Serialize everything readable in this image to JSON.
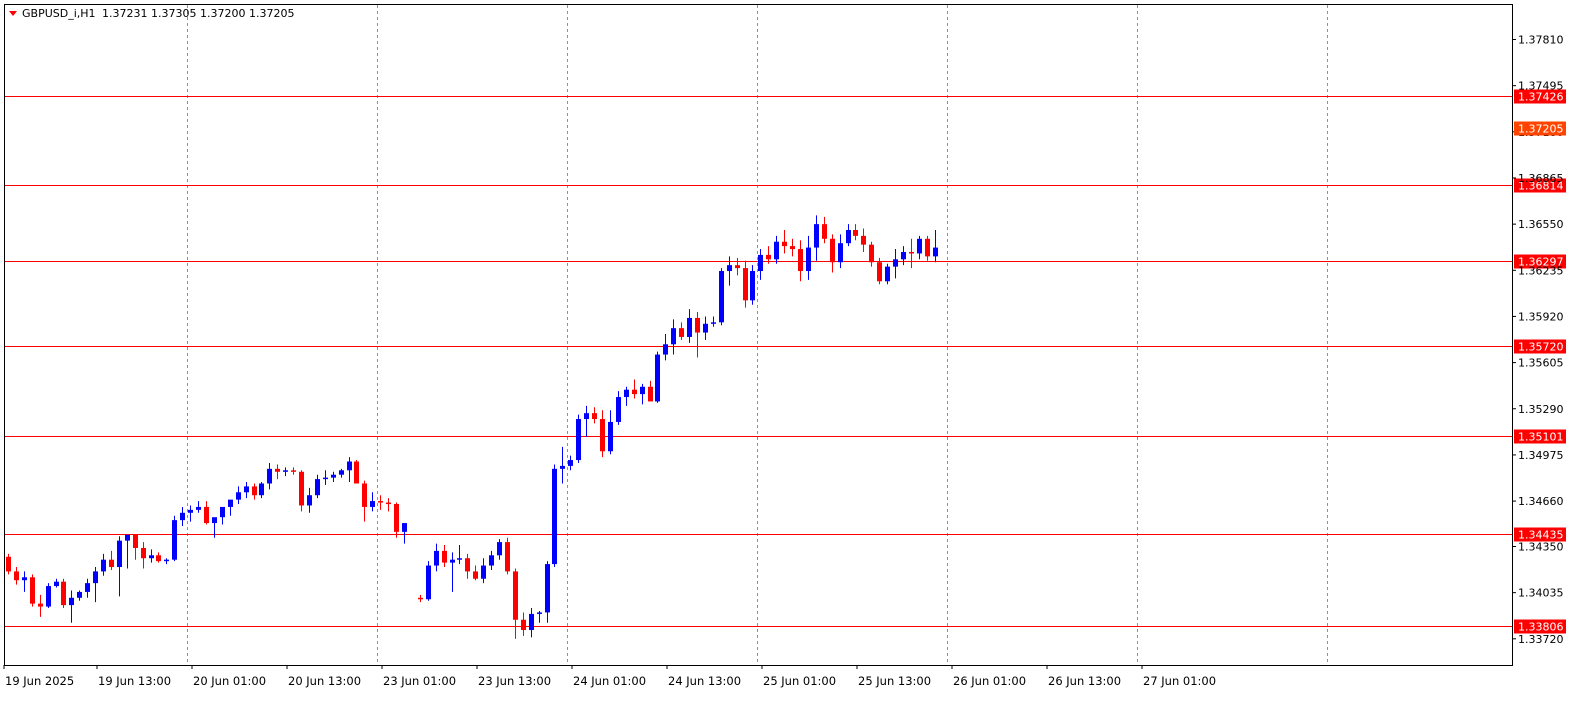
{
  "header": {
    "symbol": "GBPUSD_i,H1",
    "ohlc": "1.37231 1.37305 1.37200 1.37205"
  },
  "colors": {
    "bull": "#0000ff",
    "bear": "#ff0000",
    "doji": "#00ff00",
    "level_line": "#ff0000",
    "grid": "#ff6a3d",
    "axis_text": "#000000",
    "current_price_bg": "#ff4400",
    "level_label_bg": "#ff0000"
  },
  "chart_data": {
    "type": "candlestick",
    "timeframe": "H1",
    "symbol": "GBPUSD_i",
    "ylim": [
      1.3363,
      1.3795
    ],
    "grid": "vertical dotted at each day",
    "y_ticks": [
      "1.37810",
      "1.37495",
      "1.37180",
      "1.36865",
      "1.36550",
      "1.36235",
      "1.35920",
      "1.35605",
      "1.35290",
      "1.34975",
      "1.34660",
      "1.34350",
      "1.34035",
      "1.33720"
    ],
    "x_labels": [
      "19 Jun 2025",
      "19 Jun 13:00",
      "20 Jun 01:00",
      "20 Jun 13:00",
      "23 Jun 01:00",
      "23 Jun 13:00",
      "24 Jun 01:00",
      "24 Jun 13:00",
      "25 Jun 01:00",
      "25 Jun 13:00",
      "26 Jun 01:00",
      "26 Jun 13:00",
      "27 Jun 01:00"
    ],
    "levels": [
      "1.37426",
      "1.36814",
      "1.36297",
      "1.35720",
      "1.35101",
      "1.34435",
      "1.33806"
    ],
    "current_price": "1.37205",
    "candles": [
      [
        1.3428,
        1.343,
        1.3416,
        1.3418
      ],
      [
        1.3418,
        1.3421,
        1.3409,
        1.3412
      ],
      [
        1.3412,
        1.3418,
        1.3404,
        1.3414
      ],
      [
        1.3414,
        1.3416,
        1.3394,
        1.3396
      ],
      [
        1.3396,
        1.3402,
        1.3387,
        1.3394
      ],
      [
        1.3394,
        1.341,
        1.3393,
        1.3408
      ],
      [
        1.3408,
        1.3413,
        1.3407,
        1.3411
      ],
      [
        1.3411,
        1.3413,
        1.3393,
        1.3395
      ],
      [
        1.3395,
        1.3405,
        1.3383,
        1.34
      ],
      [
        1.34,
        1.3405,
        1.3398,
        1.3404
      ],
      [
        1.3404,
        1.3413,
        1.34,
        1.341
      ],
      [
        1.341,
        1.3421,
        1.3397,
        1.3418
      ],
      [
        1.3418,
        1.343,
        1.3415,
        1.3426
      ],
      [
        1.3426,
        1.3432,
        1.3419,
        1.3421
      ],
      [
        1.3421,
        1.3442,
        1.3401,
        1.3439
      ],
      [
        1.3439,
        1.3443,
        1.342,
        1.3443
      ],
      [
        1.3443,
        1.3443,
        1.3426,
        1.3434
      ],
      [
        1.3434,
        1.3438,
        1.342,
        1.3427
      ],
      [
        1.3427,
        1.3433,
        1.3424,
        1.3429
      ],
      [
        1.3429,
        1.3431,
        1.3424,
        1.3425
      ],
      [
        1.3425,
        1.3427,
        1.3423,
        1.3426
      ],
      [
        1.3426,
        1.3456,
        1.3425,
        1.3453
      ],
      [
        1.3453,
        1.3462,
        1.3449,
        1.3458
      ],
      [
        1.3458,
        1.3463,
        1.3452,
        1.346
      ],
      [
        1.346,
        1.3466,
        1.3458,
        1.3462
      ],
      [
        1.3462,
        1.3466,
        1.345,
        1.3451
      ],
      [
        1.3451,
        1.3453,
        1.3441,
        1.3455
      ],
      [
        1.3455,
        1.3461,
        1.345,
        1.3462
      ],
      [
        1.3462,
        1.3464,
        1.3456,
        1.3467
      ],
      [
        1.3467,
        1.3476,
        1.3464,
        1.3472
      ],
      [
        1.3472,
        1.3479,
        1.3468,
        1.3476
      ],
      [
        1.3476,
        1.3478,
        1.3467,
        1.347
      ],
      [
        1.347,
        1.3479,
        1.3468,
        1.3478
      ],
      [
        1.3478,
        1.3492,
        1.3474,
        1.3488
      ],
      [
        1.3488,
        1.3491,
        1.3481,
        1.3486
      ],
      [
        1.3486,
        1.3489,
        1.3483,
        1.3487
      ],
      [
        1.3487,
        1.3489,
        1.3484,
        1.3486
      ],
      [
        1.3486,
        1.3487,
        1.3459,
        1.3463
      ],
      [
        1.3463,
        1.3475,
        1.3458,
        1.347
      ],
      [
        1.347,
        1.3484,
        1.3468,
        1.3481
      ],
      [
        1.3481,
        1.3487,
        1.3477,
        1.3482
      ],
      [
        1.3482,
        1.3486,
        1.3479,
        1.3484
      ],
      [
        1.3484,
        1.3488,
        1.3482,
        1.3487
      ],
      [
        1.3487,
        1.3496,
        1.3479,
        1.3493
      ],
      [
        1.3493,
        1.3494,
        1.3478,
        1.3478
      ],
      [
        1.3478,
        1.348,
        1.3452,
        1.3462
      ],
      [
        1.3462,
        1.3472,
        1.3459,
        1.3466
      ],
      [
        1.3466,
        1.347,
        1.346,
        1.3465
      ],
      [
        1.3465,
        1.3468,
        1.3459,
        1.3464
      ],
      [
        1.3464,
        1.3465,
        1.3441,
        1.3445
      ],
      [
        1.3445,
        1.3449,
        1.3437,
        1.3451
      ],
      [
        1.34,
        1.3402,
        1.3397,
        1.3399
      ],
      [
        1.3399,
        1.3425,
        1.3398,
        1.3422
      ],
      [
        1.3422,
        1.3437,
        1.3418,
        1.3432
      ],
      [
        1.3432,
        1.3436,
        1.3421,
        1.3424
      ],
      [
        1.3424,
        1.3431,
        1.3404,
        1.3426
      ],
      [
        1.3426,
        1.3436,
        1.3423,
        1.3427
      ],
      [
        1.3427,
        1.343,
        1.3413,
        1.3418
      ],
      [
        1.3418,
        1.3422,
        1.3412,
        1.3413
      ],
      [
        1.3413,
        1.3427,
        1.341,
        1.3422
      ],
      [
        1.3422,
        1.3432,
        1.3419,
        1.3429
      ],
      [
        1.3429,
        1.344,
        1.3426,
        1.3438
      ],
      [
        1.3438,
        1.3441,
        1.3416,
        1.3418
      ],
      [
        1.3418,
        1.342,
        1.3372,
        1.3385
      ],
      [
        1.3385,
        1.339,
        1.3374,
        1.3378
      ],
      [
        1.3378,
        1.3393,
        1.3373,
        1.3389
      ],
      [
        1.3389,
        1.3391,
        1.3383,
        1.339
      ],
      [
        1.339,
        1.3425,
        1.3383,
        1.3423
      ],
      [
        1.3423,
        1.3491,
        1.3421,
        1.3488
      ],
      [
        1.3488,
        1.3503,
        1.3478,
        1.349
      ],
      [
        1.349,
        1.3497,
        1.3487,
        1.3494
      ],
      [
        1.3494,
        1.3525,
        1.3492,
        1.3522
      ],
      [
        1.3522,
        1.3531,
        1.351,
        1.3526
      ],
      [
        1.3526,
        1.353,
        1.3519,
        1.3522
      ],
      [
        1.3522,
        1.3528,
        1.3496,
        1.35
      ],
      [
        1.35,
        1.3528,
        1.3498,
        1.352
      ],
      [
        1.352,
        1.3541,
        1.3518,
        1.3537
      ],
      [
        1.3537,
        1.3544,
        1.3531,
        1.3542
      ],
      [
        1.3542,
        1.3549,
        1.3536,
        1.3539
      ],
      [
        1.3539,
        1.3546,
        1.3532,
        1.3544
      ],
      [
        1.3544,
        1.3548,
        1.3535,
        1.3534
      ],
      [
        1.3534,
        1.3568,
        1.3533,
        1.3566
      ],
      [
        1.3566,
        1.358,
        1.3562,
        1.3573
      ],
      [
        1.3573,
        1.359,
        1.3566,
        1.3584
      ],
      [
        1.3584,
        1.3588,
        1.3576,
        1.3578
      ],
      [
        1.3578,
        1.3597,
        1.3574,
        1.3591
      ],
      [
        1.3591,
        1.3595,
        1.3564,
        1.3581
      ],
      [
        1.3581,
        1.3592,
        1.3576,
        1.3587
      ],
      [
        1.3587,
        1.3592,
        1.3585,
        1.3588
      ],
      [
        1.3588,
        1.3625,
        1.3586,
        1.3623
      ],
      [
        1.3623,
        1.3633,
        1.3613,
        1.3627
      ],
      [
        1.3627,
        1.3632,
        1.362,
        1.3625
      ],
      [
        1.3625,
        1.363,
        1.3598,
        1.3603
      ],
      [
        1.3603,
        1.3627,
        1.36,
        1.3623
      ],
      [
        1.3623,
        1.3638,
        1.3617,
        1.3634
      ],
      [
        1.3634,
        1.364,
        1.3628,
        1.3631
      ],
      [
        1.3631,
        1.3647,
        1.3628,
        1.3643
      ],
      [
        1.3643,
        1.3651,
        1.3635,
        1.364
      ],
      [
        1.364,
        1.3645,
        1.3633,
        1.3638
      ],
      [
        1.3638,
        1.3644,
        1.3616,
        1.3623
      ],
      [
        1.3623,
        1.3647,
        1.3617,
        1.3639
      ],
      [
        1.3639,
        1.3661,
        1.363,
        1.3655
      ],
      [
        1.3655,
        1.366,
        1.3642,
        1.3645
      ],
      [
        1.3645,
        1.3648,
        1.3622,
        1.3629
      ],
      [
        1.3629,
        1.3648,
        1.3625,
        1.3642
      ],
      [
        1.3642,
        1.3655,
        1.364,
        1.3651
      ],
      [
        1.3651,
        1.3655,
        1.3644,
        1.3647
      ],
      [
        1.3647,
        1.3652,
        1.3636,
        1.3641
      ],
      [
        1.3641,
        1.3643,
        1.3626,
        1.3629
      ],
      [
        1.3629,
        1.3632,
        1.3614,
        1.3616
      ],
      [
        1.3616,
        1.3628,
        1.3614,
        1.3626
      ],
      [
        1.3626,
        1.3638,
        1.3618,
        1.3631
      ],
      [
        1.3631,
        1.364,
        1.3627,
        1.3636
      ],
      [
        1.3636,
        1.3645,
        1.3625,
        1.3635
      ],
      [
        1.3635,
        1.3647,
        1.3631,
        1.3645
      ],
      [
        1.3645,
        1.3647,
        1.363,
        1.3633
      ],
      [
        1.3633,
        1.3651,
        1.3629,
        1.3639
      ]
    ]
  }
}
